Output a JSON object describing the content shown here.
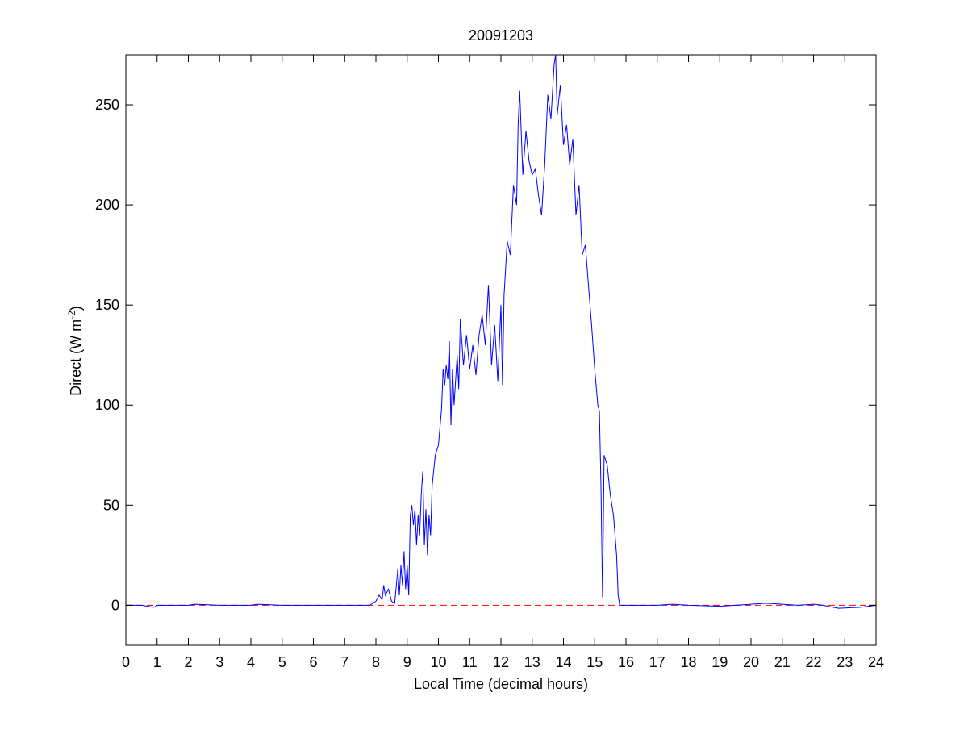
{
  "chart_data": {
    "type": "line",
    "title": "20091203",
    "xlabel": "Local Time (decimal hours)",
    "ylabel": "Direct (W m",
    "ylabel_sup": "-2",
    "ylabel_end": ")",
    "xlim": [
      0,
      24
    ],
    "xticks": [
      0,
      1,
      2,
      3,
      4,
      5,
      6,
      7,
      8,
      9,
      10,
      11,
      12,
      13,
      14,
      15,
      16,
      17,
      18,
      19,
      20,
      21,
      22,
      23,
      24
    ],
    "ylim": [
      -20,
      275
    ],
    "yticks": [
      0,
      50,
      100,
      150,
      200,
      250
    ],
    "reference_line": {
      "value": 0,
      "color": "#ff0000"
    },
    "series": [
      {
        "color": "#0000ff",
        "x": [
          0,
          0.5,
          0.9,
          1,
          2,
          2.2,
          3,
          4,
          4.2,
          5,
          6,
          7,
          7.8,
          8.0,
          8.1,
          8.2,
          8.25,
          8.3,
          8.4,
          8.5,
          8.6,
          8.7,
          8.75,
          8.8,
          8.85,
          8.9,
          8.95,
          9.0,
          9.05,
          9.1,
          9.15,
          9.2,
          9.25,
          9.3,
          9.35,
          9.4,
          9.45,
          9.5,
          9.55,
          9.6,
          9.65,
          9.7,
          9.75,
          9.8,
          9.9,
          10.0,
          10.1,
          10.15,
          10.2,
          10.25,
          10.3,
          10.35,
          10.4,
          10.45,
          10.5,
          10.6,
          10.65,
          10.7,
          10.8,
          10.9,
          11.0,
          11.1,
          11.2,
          11.3,
          11.4,
          11.5,
          11.6,
          11.7,
          11.8,
          11.9,
          12.0,
          12.05,
          12.1,
          12.2,
          12.3,
          12.4,
          12.5,
          12.55,
          12.6,
          12.7,
          12.8,
          12.9,
          13.0,
          13.1,
          13.2,
          13.3,
          13.4,
          13.5,
          13.6,
          13.7,
          13.75,
          13.8,
          13.9,
          14.0,
          14.1,
          14.2,
          14.3,
          14.4,
          14.5,
          14.6,
          14.7,
          14.8,
          14.9,
          15.0,
          15.1,
          15.15,
          15.2,
          15.25,
          15.3,
          15.4,
          15.5,
          15.6,
          15.7,
          15.75,
          15.8,
          16,
          17,
          17.5,
          18,
          19,
          19.5,
          20,
          20.5,
          21,
          21.5,
          22,
          22.3,
          22.8,
          23.5,
          24
        ],
        "values": [
          0,
          0,
          -1,
          0,
          0,
          0.5,
          0,
          0,
          0.5,
          0,
          0,
          0,
          0,
          2,
          5,
          3,
          10,
          5,
          8,
          2,
          1,
          18,
          5,
          20,
          10,
          27,
          8,
          20,
          5,
          45,
          50,
          40,
          48,
          30,
          45,
          35,
          55,
          67,
          30,
          48,
          25,
          45,
          35,
          60,
          75,
          80,
          98,
          118,
          110,
          120,
          113,
          132,
          90,
          118,
          100,
          125,
          108,
          143,
          120,
          135,
          118,
          130,
          115,
          135,
          145,
          130,
          160,
          120,
          140,
          112,
          150,
          110,
          155,
          182,
          175,
          210,
          200,
          240,
          257,
          215,
          237,
          222,
          215,
          218,
          205,
          195,
          220,
          255,
          243,
          270,
          275,
          245,
          260,
          230,
          240,
          220,
          233,
          195,
          210,
          175,
          180,
          160,
          140,
          118,
          100,
          97,
          60,
          4,
          75,
          70,
          55,
          45,
          25,
          5,
          0,
          0,
          0,
          0.5,
          0,
          -0.5,
          0,
          0.5,
          1,
          0.5,
          0,
          0.5,
          0,
          -1.5,
          -1,
          0
        ]
      }
    ]
  }
}
